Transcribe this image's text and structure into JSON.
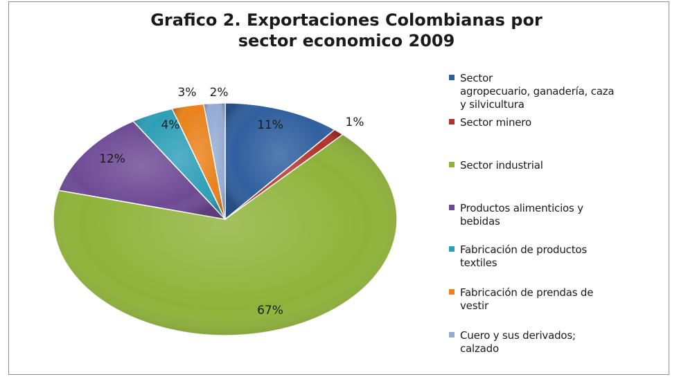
{
  "chart_data": {
    "type": "pie",
    "title": "Grafico 2. Exportaciones Colombianas por sector economico 2009",
    "title_lines": [
      "Grafico 2. Exportaciones Colombianas por",
      "sector economico 2009"
    ],
    "legend_position": "right",
    "slices": [
      {
        "label": "Sector agropecuario, ganadería, caza y silvicultura",
        "legend_lines": [
          "Sector",
          "agropecuario, ganadería, caza",
          "y silvicultura"
        ],
        "value": 11,
        "display": "11%",
        "color": "#2f5f9e"
      },
      {
        "label": "Sector minero",
        "legend_lines": [
          "Sector minero"
        ],
        "value": 1,
        "display": "1%",
        "color": "#b2312c"
      },
      {
        "label": "Sector industrial",
        "legend_lines": [
          "Sector industrial"
        ],
        "value": 67,
        "display": "67%",
        "color": "#8fb33a"
      },
      {
        "label": "Productos alimenticios y bebidas",
        "legend_lines": [
          "Productos alimenticios y",
          "bebidas"
        ],
        "value": 12,
        "display": "12%",
        "color": "#6e4a94"
      },
      {
        "label": "Fabricación de productos textiles",
        "legend_lines": [
          "Fabricación de productos",
          "textiles"
        ],
        "value": 4,
        "display": "4%",
        "color": "#2e9fb8"
      },
      {
        "label": "Fabricación de prendas de vestir",
        "legend_lines": [
          "Fabricación de prendas de",
          "vestir"
        ],
        "value": 3,
        "display": "3%",
        "color": "#e9821c"
      },
      {
        "label": "Cuero y sus derivados; calzado",
        "legend_lines": [
          "Cuero y sus derivados;",
          "calzado"
        ],
        "value": 2,
        "display": "2%",
        "color": "#95acd4"
      }
    ]
  }
}
